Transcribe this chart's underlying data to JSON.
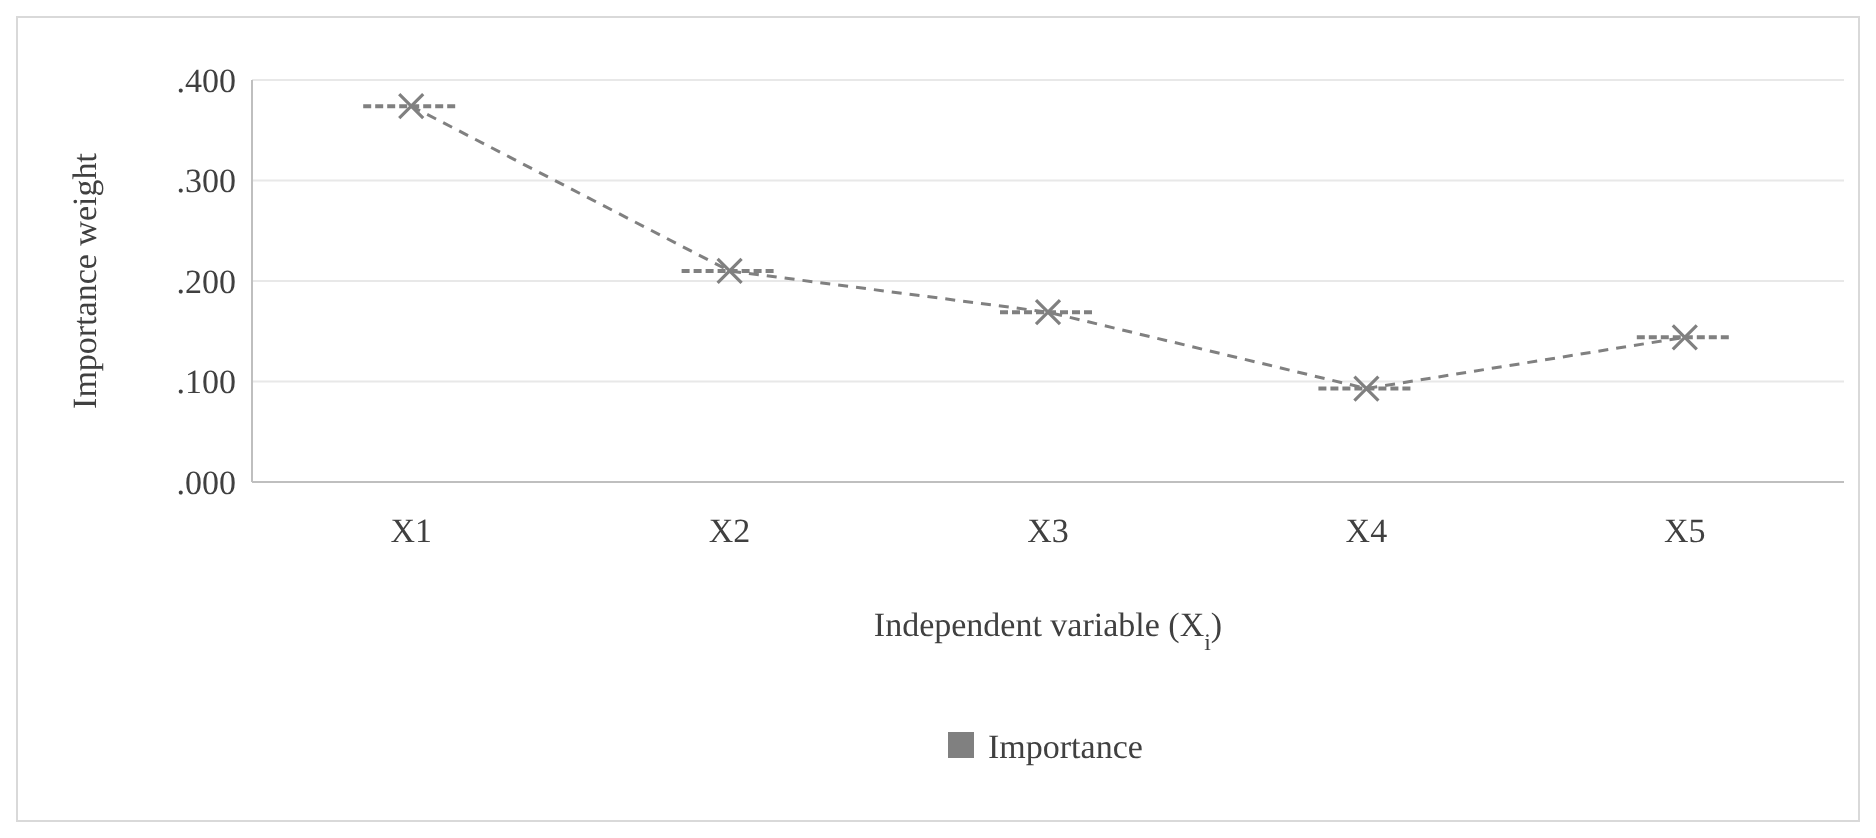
{
  "chart_data": {
    "type": "line",
    "xlabel": "Independent variable (X$_{i}$)",
    "ylabel": "Importance weight",
    "categories": [
      "X1",
      "X2",
      "X3",
      "X4",
      "X5"
    ],
    "series": [
      {
        "name": "Importance",
        "color": "#808080",
        "values": [
          0.374,
          0.21,
          0.169,
          0.093,
          0.144
        ]
      }
    ],
    "ylim": [
      0,
      0.4
    ],
    "yticks": [
      {
        "value": 0,
        "label": ".000"
      },
      {
        "value": 0.1,
        "label": ".100"
      },
      {
        "value": 0.2,
        "label": ".200"
      },
      {
        "value": 0.3,
        "label": ".300"
      },
      {
        "value": 0.4,
        "label": ".400"
      }
    ],
    "grid": "y",
    "legend": "bottom",
    "marker": "cross",
    "line_style": "dashed"
  }
}
